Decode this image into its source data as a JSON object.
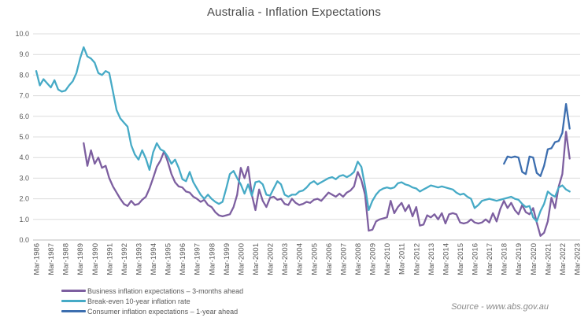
{
  "chart_data": {
    "type": "line",
    "title": "Australia - Inflation Expectations",
    "source": "Source - www.abs.gov.au",
    "grid": "horizontal",
    "legend_position": "bottom-left",
    "x_axis": {
      "frequency": "quarterly",
      "tick_labels": [
        "Mar-1986",
        "Mar-1987",
        "Mar-1988",
        "Mar-1989",
        "Mar-1990",
        "Mar-1991",
        "Mar-1992",
        "Mar-1993",
        "Mar-1994",
        "Mar-1995",
        "Mar-1996",
        "Mar-1997",
        "Mar-1998",
        "Mar-1999",
        "Mar-2000",
        "Mar-2001",
        "Mar-2002",
        "Mar-2003",
        "Mar-2004",
        "Mar-2005",
        "Mar-2006",
        "Mar-2007",
        "Mar-2008",
        "Mar-2009",
        "Mar-2010",
        "Mar-2011",
        "Mar-2012",
        "Mar-2013",
        "Mar-2014",
        "Mar-2015",
        "Mar-2016",
        "Mar-2017",
        "Mar-2018",
        "Mar-2019",
        "Mar-2020",
        "Mar-2021",
        "Mar-2022",
        "Mar-2023"
      ]
    },
    "y_axis": {
      "min": 0,
      "max": 10,
      "step": 1,
      "tick_labels": [
        "0.0",
        "1.0",
        "2.0",
        "3.0",
        "4.0",
        "5.0",
        "6.0",
        "7.0",
        "8.0",
        "9.0",
        "10.0"
      ]
    },
    "series": [
      {
        "name": "Business inflation expectations – 3-months ahead",
        "color": "#7D5FA0",
        "start_period": "Jun-1989",
        "start_index": 13,
        "values": [
          4.7,
          3.6,
          4.35,
          3.7,
          4.0,
          3.5,
          3.6,
          3.0,
          2.6,
          2.3,
          2.0,
          1.75,
          1.65,
          1.9,
          1.7,
          1.75,
          1.95,
          2.1,
          2.5,
          3.0,
          3.55,
          3.85,
          4.3,
          3.8,
          3.2,
          2.8,
          2.6,
          2.55,
          2.35,
          2.3,
          2.1,
          2.0,
          1.85,
          1.95,
          1.7,
          1.6,
          1.35,
          1.2,
          1.15,
          1.2,
          1.25,
          1.6,
          2.2,
          3.5,
          3.0,
          3.55,
          2.2,
          1.45,
          2.45,
          1.9,
          1.6,
          2.05,
          2.1,
          1.95,
          2.0,
          1.75,
          1.7,
          2.0,
          1.8,
          1.7,
          1.75,
          1.85,
          1.8,
          1.95,
          2.0,
          1.9,
          2.1,
          2.3,
          2.2,
          2.1,
          2.25,
          2.1,
          2.3,
          2.4,
          2.6,
          3.3,
          2.9,
          2.2,
          0.45,
          0.5,
          0.9,
          1.0,
          1.05,
          1.1,
          1.9,
          1.3,
          1.6,
          1.8,
          1.4,
          1.7,
          1.15,
          1.6,
          0.7,
          0.75,
          1.2,
          1.1,
          1.25,
          1.0,
          1.3,
          0.8,
          1.25,
          1.3,
          1.25,
          0.85,
          0.8,
          0.85,
          1.0,
          0.85,
          0.8,
          0.85,
          1.0,
          0.85,
          1.3,
          0.9,
          1.5,
          1.9,
          1.55,
          1.8,
          1.45,
          1.25,
          1.7,
          1.35,
          1.25,
          1.55,
          0.85,
          0.2,
          0.35,
          0.9,
          2.05,
          1.55,
          2.6,
          3.2,
          5.25,
          3.95
        ]
      },
      {
        "name": "Break-even 10-year inflation rate",
        "color": "#46AAC6",
        "start_period": "Mar-1986",
        "start_index": 0,
        "values": [
          8.2,
          7.5,
          7.8,
          7.6,
          7.4,
          7.75,
          7.3,
          7.2,
          7.25,
          7.5,
          7.7,
          8.1,
          8.8,
          9.35,
          8.9,
          8.8,
          8.6,
          8.1,
          8.0,
          8.2,
          8.1,
          7.2,
          6.3,
          5.9,
          5.7,
          5.5,
          4.6,
          4.15,
          3.9,
          4.35,
          3.95,
          3.4,
          4.25,
          4.7,
          4.4,
          4.3,
          4.05,
          3.7,
          3.9,
          3.5,
          2.95,
          2.85,
          3.3,
          2.8,
          2.5,
          2.2,
          2.0,
          2.2,
          2.0,
          1.85,
          1.75,
          1.85,
          2.5,
          3.2,
          3.35,
          3.0,
          2.7,
          2.25,
          2.7,
          2.15,
          2.8,
          2.85,
          2.7,
          2.2,
          2.15,
          2.5,
          2.85,
          2.7,
          2.2,
          2.1,
          2.2,
          2.2,
          2.35,
          2.4,
          2.55,
          2.75,
          2.85,
          2.7,
          2.8,
          2.9,
          3.0,
          3.05,
          2.95,
          3.1,
          3.15,
          3.05,
          3.15,
          3.3,
          3.8,
          3.55,
          2.6,
          1.45,
          1.9,
          2.2,
          2.4,
          2.5,
          2.55,
          2.5,
          2.55,
          2.75,
          2.8,
          2.7,
          2.65,
          2.55,
          2.5,
          2.35,
          2.45,
          2.55,
          2.65,
          2.6,
          2.55,
          2.6,
          2.55,
          2.5,
          2.45,
          2.3,
          2.2,
          2.25,
          2.1,
          2.0,
          1.55,
          1.7,
          1.9,
          1.95,
          2.0,
          1.95,
          1.9,
          1.95,
          2.0,
          2.05,
          2.1,
          2.0,
          1.95,
          1.75,
          1.6,
          1.65,
          1.1,
          0.9,
          1.4,
          1.75,
          2.35,
          2.2,
          2.1,
          2.55,
          2.65,
          2.45,
          2.35
        ]
      },
      {
        "name": "Consumer inflation expectations – 1-year ahead",
        "color": "#3C6EAF",
        "start_period": "Mar-2018",
        "start_index": 128,
        "values": [
          3.7,
          4.05,
          4.0,
          4.05,
          4.0,
          3.3,
          3.2,
          4.05,
          4.0,
          3.25,
          3.1,
          3.6,
          4.4,
          4.45,
          4.75,
          4.8,
          5.2,
          6.6,
          5.4
        ]
      }
    ]
  }
}
